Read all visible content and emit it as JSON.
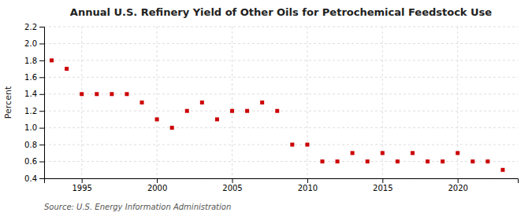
{
  "chart_data": {
    "type": "scatter",
    "title": "Annual U.S. Refinery Yield of Other Oils for Petrochemical Feedstock Use",
    "ylabel": "Percent",
    "annotations": [
      "Source: U.S. Energy Information Administration"
    ],
    "x": [
      1993,
      1994,
      1995,
      1996,
      1997,
      1998,
      1999,
      2000,
      2001,
      2002,
      2003,
      2004,
      2005,
      2006,
      2007,
      2008,
      2009,
      2010,
      2011,
      2012,
      2013,
      2014,
      2015,
      2016,
      2017,
      2018,
      2019,
      2020,
      2021,
      2022,
      2023
    ],
    "values": [
      1.8,
      1.7,
      1.4,
      1.4,
      1.4,
      1.4,
      1.3,
      1.1,
      1.0,
      1.2,
      1.3,
      1.1,
      1.2,
      1.2,
      1.3,
      1.2,
      0.8,
      0.8,
      0.6,
      0.6,
      0.7,
      0.6,
      0.7,
      0.6,
      0.7,
      0.6,
      0.6,
      0.7,
      0.6,
      0.6,
      0.5
    ],
    "color": "#cc0000",
    "marker": "square",
    "xlim": [
      1992.5,
      2024
    ],
    "xticks": [
      1995,
      2000,
      2005,
      2010,
      2015,
      2020
    ],
    "ylim": [
      0.4,
      2.2
    ],
    "yticks": [
      0.4,
      0.6,
      0.8,
      {
        "value": 1.0,
        "label": "1.0"
      },
      1.2,
      1.4,
      1.6,
      1.8,
      {
        "value": 2.0,
        "label": "2.0"
      },
      2.2
    ],
    "grid": true
  }
}
